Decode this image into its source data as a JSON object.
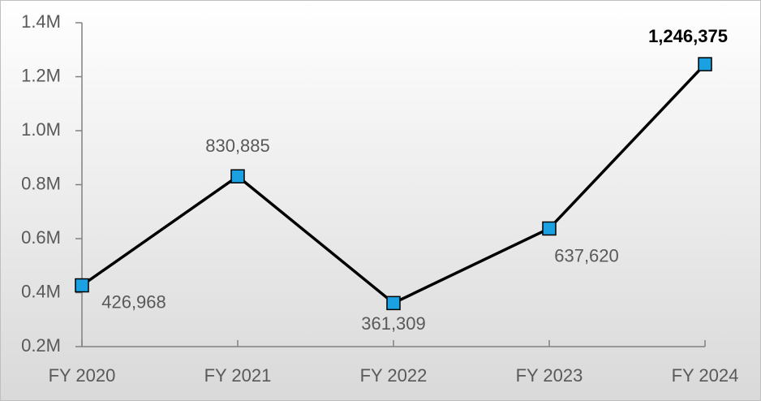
{
  "chart_data": {
    "type": "line",
    "categories": [
      "FY 2020",
      "FY 2021",
      "FY 2022",
      "FY 2023",
      "FY 2024"
    ],
    "series": [
      {
        "color": "#1ba1e2",
        "values": [
          426968,
          830885,
          361309,
          637620,
          1246375
        ],
        "value_labels": [
          "426,968",
          "830,885",
          "361,309",
          "637,620",
          "1,246,375"
        ]
      }
    ],
    "ylim": [
      200000,
      1400000
    ],
    "yticks": [
      {
        "value": 200000,
        "label": "0.2M"
      },
      {
        "value": 400000,
        "label": "0.4M"
      },
      {
        "value": 600000,
        "label": "0.6M"
      },
      {
        "value": 800000,
        "label": "0.8M"
      },
      {
        "value": 1000000,
        "label": "1.0M"
      },
      {
        "value": 1200000,
        "label": "1.2M"
      },
      {
        "value": 1400000,
        "label": "1.4M"
      }
    ]
  }
}
